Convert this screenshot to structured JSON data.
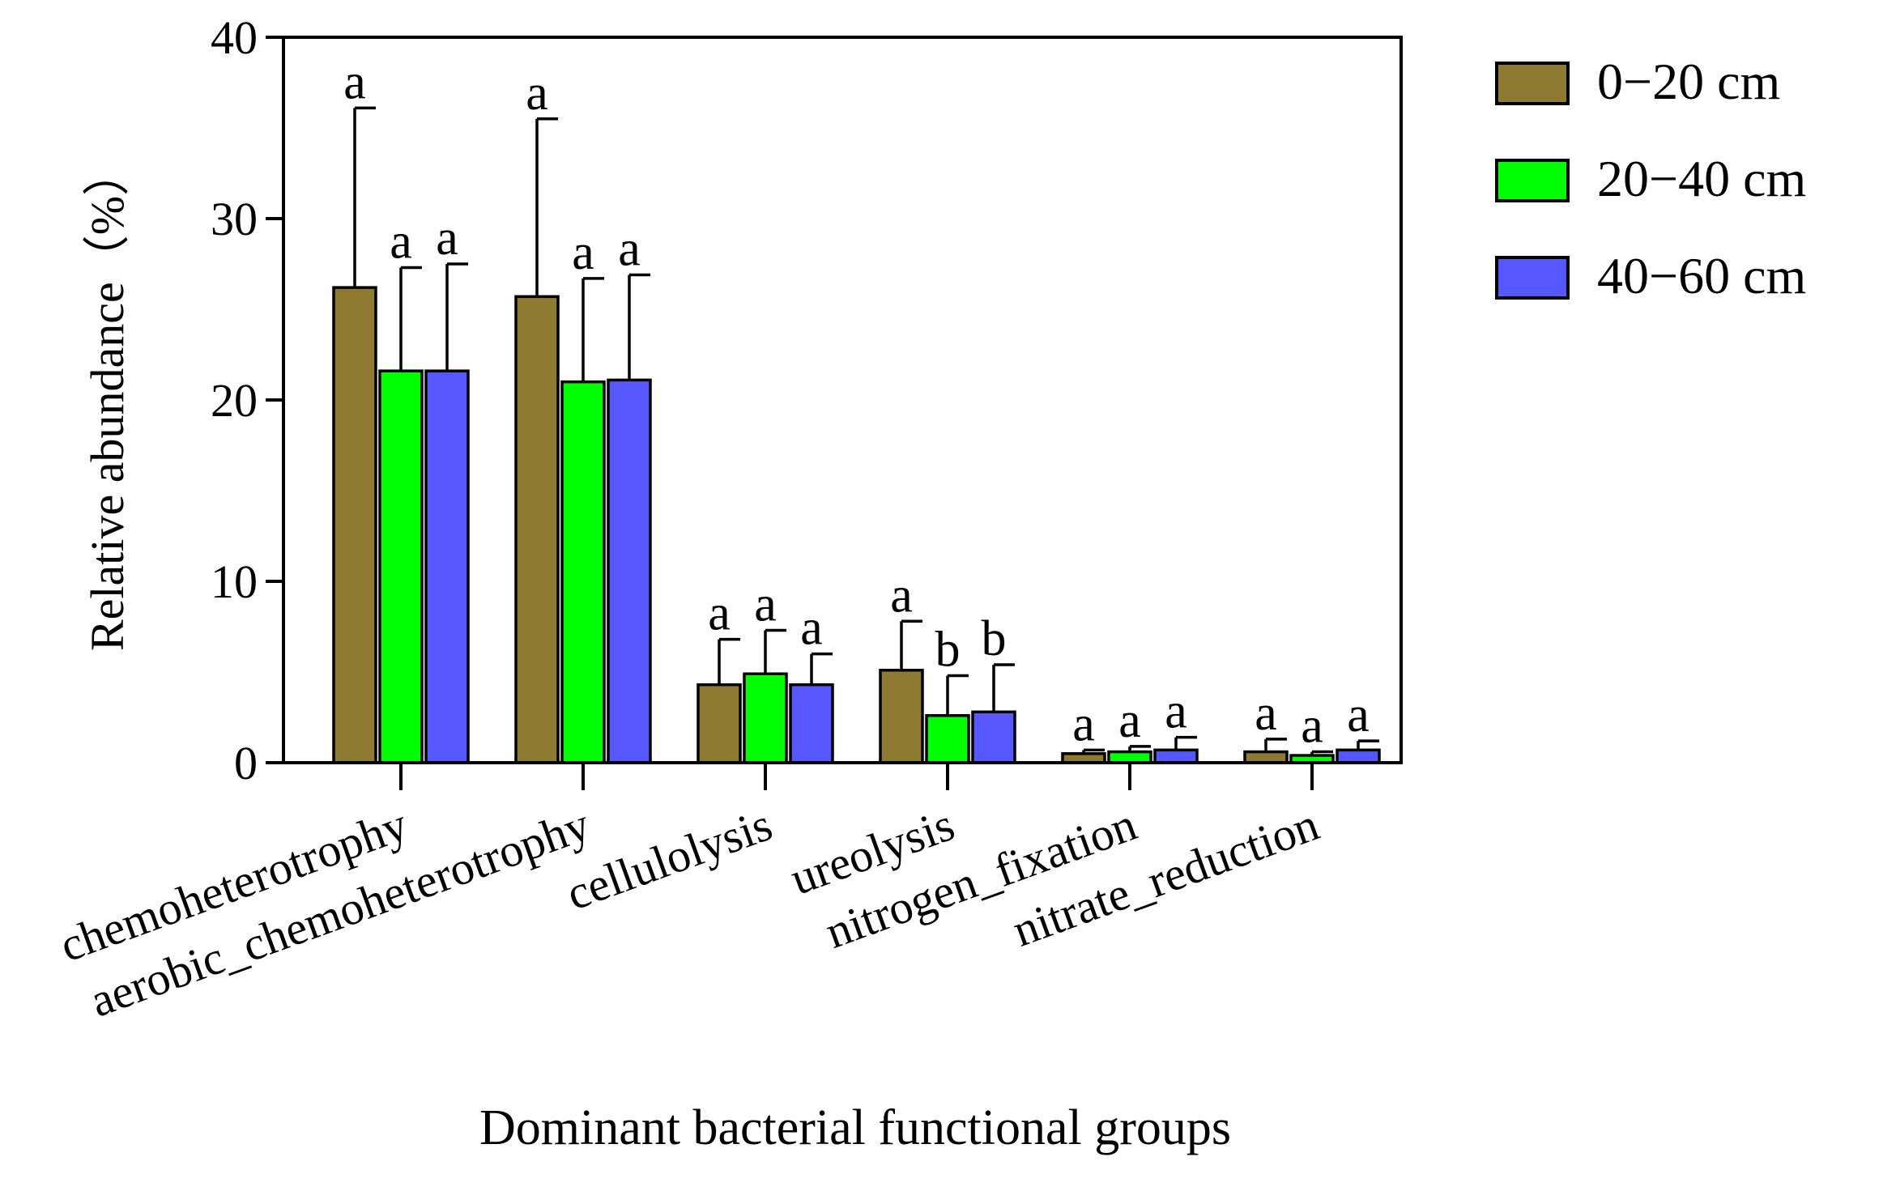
{
  "chart_data": {
    "type": "bar",
    "title": "",
    "xlabel": "Dominant bacterial functional groups",
    "ylabel": "Relative abundance（%）",
    "ylim": [
      0,
      40
    ],
    "yticks": [
      "0",
      "10",
      "20",
      "30",
      "40"
    ],
    "grid": false,
    "legend_position": "top-right, outside plot",
    "categories": [
      "chemoheterotrophy",
      "aerobic_chemoheterotrophy",
      "cellulolysis",
      "ureolysis",
      "nitrogen_fixation",
      "nitrate_reduction"
    ],
    "series": [
      {
        "name": "0−20 cm",
        "color": "#8f7a31",
        "values": [
          26.2,
          25.7,
          4.3,
          5.1,
          0.5,
          0.6
        ],
        "errors": [
          9.9,
          9.8,
          2.5,
          2.7,
          0.2,
          0.7
        ],
        "letters": [
          "a",
          "a",
          "a",
          "a",
          "a",
          "a"
        ]
      },
      {
        "name": "20−40 cm",
        "color": "#00ff00",
        "values": [
          21.6,
          21.0,
          4.9,
          2.6,
          0.6,
          0.4
        ],
        "errors": [
          5.7,
          5.7,
          2.4,
          2.2,
          0.3,
          0.2
        ],
        "letters": [
          "a",
          "a",
          "a",
          "b",
          "a",
          "a"
        ]
      },
      {
        "name": "40−60 cm",
        "color": "#5757ff",
        "values": [
          21.6,
          21.1,
          4.3,
          2.8,
          0.7,
          0.7
        ],
        "errors": [
          5.9,
          5.8,
          1.7,
          2.6,
          0.7,
          0.5
        ],
        "letters": [
          "a",
          "a",
          "a",
          "b",
          "a",
          "a"
        ]
      }
    ]
  }
}
